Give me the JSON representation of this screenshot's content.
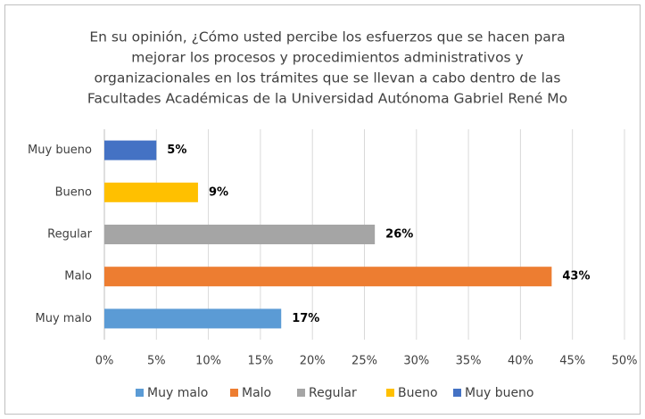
{
  "chart_data": {
    "type": "bar",
    "orientation": "horizontal",
    "title": [
      "En su opinión, ¿Cómo usted percibe los esfuerzos que se hacen para",
      "mejorar los procesos y procedimientos administrativos y",
      "organizacionales en los trámites que se llevan a cabo dentro de las",
      "Facultades Académicas de la Universidad Autónoma Gabriel René Mo"
    ],
    "categories": [
      "Muy malo",
      "Malo",
      "Regular",
      "Bueno",
      "Muy bueno"
    ],
    "values": [
      17,
      43,
      26,
      9,
      5
    ],
    "value_labels": [
      "17%",
      "43%",
      "26%",
      "9%",
      "5%"
    ],
    "colors": [
      "#5b9bd5",
      "#ed7d31",
      "#a5a5a5",
      "#ffc000",
      "#4472c4"
    ],
    "xlim": [
      0,
      50
    ],
    "xticks": [
      {
        "value": 0,
        "label": "0%"
      },
      {
        "value": 5,
        "label": "5%"
      },
      {
        "value": 10,
        "label": "10%"
      },
      {
        "value": 15,
        "label": "15%"
      },
      {
        "value": 20,
        "label": "20%"
      },
      {
        "value": 25,
        "label": "25%"
      },
      {
        "value": 30,
        "label": "30%"
      },
      {
        "value": 35,
        "label": "35%"
      },
      {
        "value": 40,
        "label": "40%"
      },
      {
        "value": 45,
        "label": "45%"
      },
      {
        "value": 50,
        "label": "50%"
      }
    ],
    "grid": true,
    "legend": "bottom"
  }
}
